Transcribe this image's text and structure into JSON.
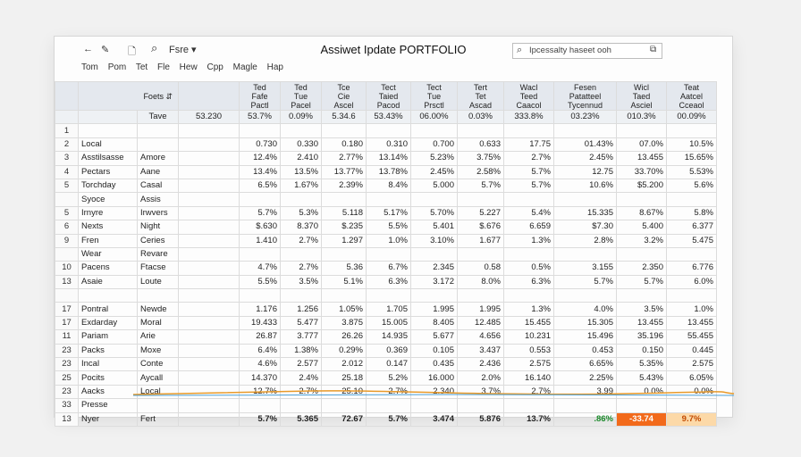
{
  "toolbar": {
    "back_glyph": "←",
    "edit_glyph": "✎",
    "file_glyph": "🗋",
    "search_glyph": "⌕",
    "share_label": "Fsre ▾",
    "title": "Assiwet Ipdate PORTFOLIO",
    "search_value": "Ipcessalty haseet ooh",
    "search_btn_glyph": "⧉"
  },
  "menubar": [
    "Tom",
    "Pom",
    "Tet",
    "Fle",
    "Hew",
    "Cpp",
    "Magle",
    "Hap"
  ],
  "header": {
    "corner": "Foets ⇵",
    "cols": [
      "Ted\nFafe\nPactl",
      "Ted\nTue\nPacel",
      "Tce\nCie\nAscel",
      "Tect\nTaied\nPacod",
      "Tect\nTue\nPrsctl",
      "Tert\nTet\nAscad",
      "Wacl\nTeed\nCaacol",
      "Fesen\nPatatteel\nTycennud",
      "Wicl\nTaed\nAsciel",
      "Teat\nAatcel\nCceaol"
    ]
  },
  "subheader": {
    "label": "Tave",
    "vals": [
      "53.230",
      "53.7%",
      "0.09%",
      "5.34.6",
      "53.43%",
      "06.00%",
      "0.03%",
      "333.8%",
      "03.23%",
      "010.3%",
      "00.09%"
    ]
  },
  "rows": [
    {
      "n": "1",
      "a": "",
      "b": "",
      "cells": [
        "",
        "",
        "",
        "",
        "",
        "",
        "",
        "",
        "",
        "",
        ""
      ]
    },
    {
      "n": "2",
      "a": "Local",
      "b": "",
      "cells": [
        "",
        "0.730",
        "0.330",
        "0.180",
        "0.310",
        "0.700",
        "0.633",
        "17.75",
        "01.43%",
        "07.0%",
        "10.5%"
      ]
    },
    {
      "n": "3",
      "a": "Asstilsasse",
      "b": "Amore",
      "cells": [
        "",
        "12.4%",
        "2.410",
        "2.77%",
        "13.14%",
        "5.23%",
        "3.75%",
        "2.7%",
        "2.45%",
        "13.455",
        "15.65%"
      ]
    },
    {
      "n": "4",
      "a": "Pectars",
      "b": "Aane",
      "cells": [
        "",
        "13.4%",
        "13.5%",
        "13.77%",
        "13.78%",
        "2.45%",
        "2.58%",
        "5.7%",
        "12.75",
        "33.70%",
        "5.53%"
      ]
    },
    {
      "n": "5",
      "a": "Torchday",
      "b": "Casal",
      "cells": [
        "",
        "6.5%",
        "1.67%",
        "2.39%",
        "8.4%",
        "5.000",
        "5.7%",
        "5.7%",
        "10.6%",
        "$5.200",
        "5.6%"
      ]
    },
    {
      "n": "",
      "a": "Syoce",
      "b": "Assis",
      "cells": [
        "",
        "",
        "",
        "",
        "",
        "",
        "",
        "",
        "",
        "",
        ""
      ]
    },
    {
      "n": "5",
      "a": "Irnyre",
      "b": "Irwvers",
      "cells": [
        "",
        "5.7%",
        "5.3%",
        "5.118",
        "5.17%",
        "5.70%",
        "5.227",
        "5.4%",
        "15.335",
        "8.67%",
        "5.8%"
      ]
    },
    {
      "n": "6",
      "a": "Nexts",
      "b": "Night",
      "cells": [
        "",
        "$.630",
        "8.370",
        "$.235",
        "5.5%",
        "5.401",
        "$.676",
        "6.659",
        "$7.30",
        "5.400",
        "6.377"
      ]
    },
    {
      "n": "9",
      "a": "Fren",
      "b": "Ceries",
      "cells": [
        "",
        "1.410",
        "2.7%",
        "1.297",
        "1.0%",
        "3.10%",
        "1.677",
        "1.3%",
        "2.8%",
        "3.2%",
        "5.475"
      ]
    },
    {
      "n": "",
      "a": "Wear",
      "b": "Revare",
      "cells": [
        "",
        "",
        "",
        "",
        "",
        "",
        "",
        "",
        "",
        "",
        ""
      ]
    },
    {
      "n": "10",
      "a": "Pacens",
      "b": "Ftacse",
      "cells": [
        "",
        "4.7%",
        "2.7%",
        "5.36",
        "6.7%",
        "2.345",
        "0.58",
        "0.5%",
        "3.155",
        "2.350",
        "6.776"
      ]
    },
    {
      "n": "13",
      "a": "Asaie",
      "b": "Loute",
      "cells": [
        "",
        "5.5%",
        "3.5%",
        "5.1%",
        "6.3%",
        "3.172",
        "8.0%",
        "6.3%",
        "5.7%",
        "5.7%",
        "6.0%"
      ]
    },
    {
      "n": "",
      "a": "",
      "b": "",
      "cells": [
        "",
        "",
        "",
        "",
        "",
        "",
        "",
        "",
        "",
        "",
        ""
      ]
    },
    {
      "n": "17",
      "a": "Pontral",
      "b": "Newde",
      "cells": [
        "",
        "1.176",
        "1.256",
        "1.05%",
        "1.705",
        "1.995",
        "1.995",
        "1.3%",
        "4.0%",
        "3.5%",
        "1.0%"
      ]
    },
    {
      "n": "17",
      "a": "Exdarday",
      "b": "Moral",
      "cells": [
        "",
        "19.433",
        "5.477",
        "3.875",
        "15.005",
        "8.405",
        "12.485",
        "15.455",
        "15.305",
        "13.455",
        "13.455"
      ]
    },
    {
      "n": "11",
      "a": "Pariam",
      "b": "Arie",
      "cells": [
        "",
        "26.87",
        "3.777",
        "26.26",
        "14.935",
        "5.677",
        "4.656",
        "10.231",
        "15.496",
        "35.196",
        "55.455"
      ]
    },
    {
      "n": "23",
      "a": "Packs",
      "b": "Moxe",
      "cells": [
        "",
        "6.4%",
        "1.38%",
        "0.29%",
        "0.369",
        "0.105",
        "3.437",
        "0.553",
        "0.453",
        "0.150",
        "0.445"
      ]
    },
    {
      "n": "23",
      "a": "Incal",
      "b": "Conte",
      "cells": [
        "",
        "4.6%",
        "2.577",
        "2.012",
        "0.147",
        "0.435",
        "2.436",
        "2.575",
        "6.65%",
        "5.35%",
        "2.575"
      ]
    },
    {
      "n": "25",
      "a": "Pocits",
      "b": "Aycall",
      "cells": [
        "",
        "14.370",
        "2.4%",
        "25.18",
        "5.2%",
        "16.000",
        "2.0%",
        "16.140",
        "2.25%",
        "5.43%",
        "6.05%"
      ]
    },
    {
      "n": "23",
      "a": "Aacks",
      "b": "Local",
      "cells": [
        "",
        "12.7%",
        "2.7%",
        "25.10",
        "2.7%",
        "2.340",
        "3.7%",
        "2.7%",
        "3.99",
        "0.0%",
        "0.0%"
      ]
    },
    {
      "n": "33",
      "a": "Presse",
      "b": "",
      "cells": [
        "",
        "",
        "",
        "",
        "",
        "",
        "",
        "",
        "",
        "",
        ""
      ]
    }
  ],
  "total_row": {
    "n": "13",
    "a": "Nyer",
    "b": "Fert",
    "cells": [
      "",
      "5.7%",
      "5.365",
      "72.67",
      "5.7%",
      "3.474",
      "5.876",
      "13.7%",
      ".86%",
      "-33.74",
      "9.7%"
    ]
  },
  "colors": {
    "accent_orange": "#f26a1b",
    "light_orange": "#fcd9a8",
    "positive_green": "#1a8a2a",
    "header_bg": "#e4e8ee"
  }
}
